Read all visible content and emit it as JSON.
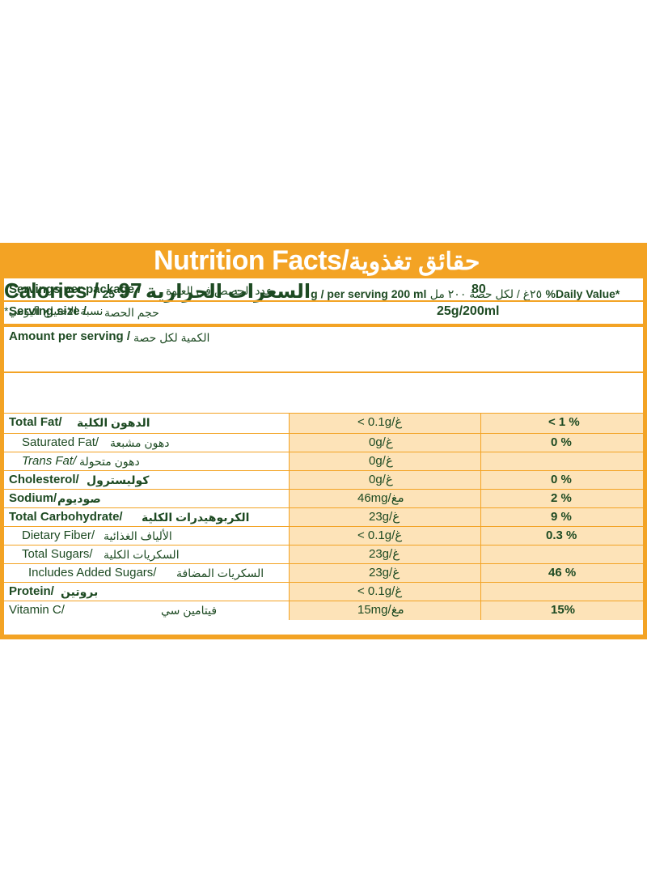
{
  "title": {
    "en": "Nutrition Facts/",
    "ar": "حقائق تغذوية"
  },
  "servings_per_package": {
    "label": "Servings per package /",
    "label_ar": "عدد الحصص في العبوة",
    "value": "80"
  },
  "serving_size": {
    "label": "Serving size /",
    "label_ar": "حجم الحصة",
    "value": "25g/200ml"
  },
  "amount_per_serving": {
    "label": "Amount per serving /",
    "label_ar": "الكمية لكل حصة"
  },
  "calories": {
    "label": "Calories /",
    "label_ar": "السعرات الحرارية",
    "value": "97"
  },
  "column_headers": {
    "per_serving": "25g / per serving 200 ml",
    "per_serving_ar": "٢٥غ / لكل حصة ٢٠٠ مل",
    "daily_value": "%Daily Value*",
    "daily_value_ar": "*نسبة الاحتياج اليومي"
  },
  "nutrients": [
    {
      "label": "Total Fat/",
      "label_ar": "الدهون الكلية",
      "amount": "< 0.1g/غ",
      "dv": "< 1 %"
    },
    {
      "label": "Saturated Fat/",
      "label_ar": "دهون مشبعة",
      "amount": "0g/غ",
      "dv": "0 %"
    },
    {
      "label": "Trans Fat/",
      "label_ar": "دهون متحولة",
      "amount": "0g/غ",
      "dv": ""
    },
    {
      "label": "Cholesterol/",
      "label_ar": "كوليسترول",
      "amount": "0g/غ",
      "dv": "0 %"
    },
    {
      "label": "Sodium/",
      "label_ar": "صوديوم",
      "amount": "46mg/مغ",
      "dv": "2 %"
    },
    {
      "label": "Total Carbohydrate/",
      "label_ar": "الكربوهيدرات الكلية",
      "amount": "23g/غ",
      "dv": "9 %"
    },
    {
      "label": "Dietary Fiber/",
      "label_ar": "الألياف الغذائية",
      "amount": "< 0.1g/غ",
      "dv": "0.3 %"
    },
    {
      "label": "Total Sugars/",
      "label_ar": "السكريات الكلية",
      "amount": "23g/غ",
      "dv": ""
    },
    {
      "label": "Includes Added Sugars/",
      "label_ar": "السكريات المضافة",
      "amount": "23g/غ",
      "dv": "46 %"
    },
    {
      "label": "Protein/",
      "label_ar": "بروتين",
      "amount": "< 0.1g/غ",
      "dv": ""
    },
    {
      "label": "Vitamin C/",
      "label_ar": "فيتامين سي",
      "amount": "15mg/مغ",
      "dv": "15%"
    }
  ],
  "colors": {
    "orange": "#f3a324",
    "peach": "#fde3b8",
    "green_text": "#1d4a22"
  }
}
